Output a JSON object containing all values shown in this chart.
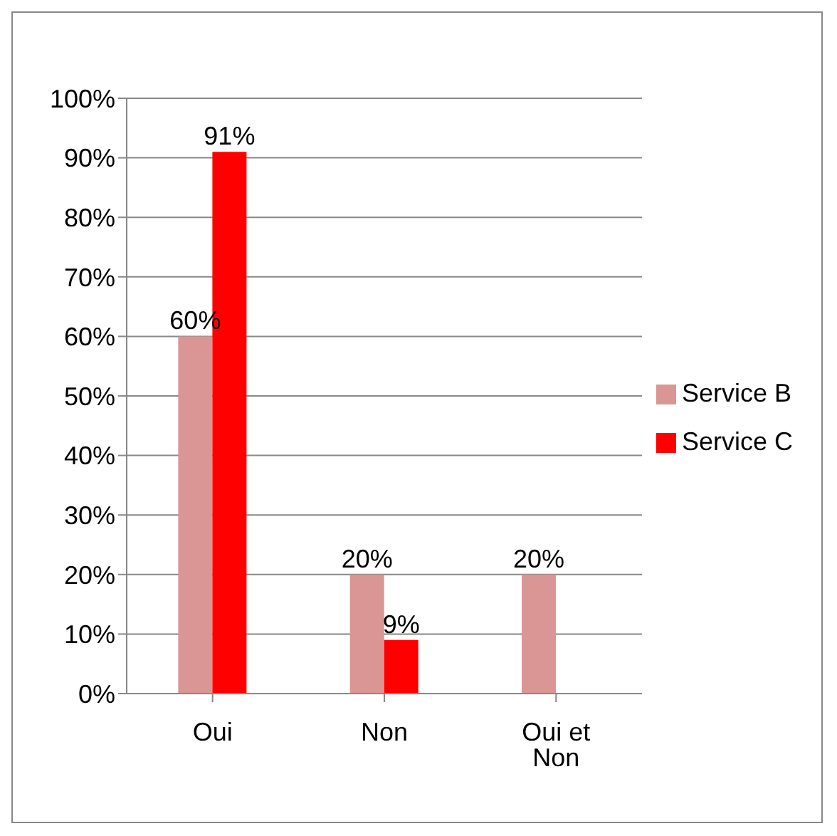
{
  "chart_data": {
    "type": "bar",
    "categories": [
      "Oui",
      "Non",
      "Oui et Non"
    ],
    "series": [
      {
        "name": "Service B",
        "color": "#d99694",
        "values": [
          60,
          20,
          20
        ],
        "value_labels": [
          "60%",
          "20%",
          "20%"
        ]
      },
      {
        "name": "Service C",
        "color": "#ff0000",
        "values": [
          91,
          9,
          null
        ],
        "value_labels": [
          "91%",
          "9%",
          null
        ]
      }
    ],
    "ylim": [
      0,
      100
    ],
    "yticks": [
      {
        "value": 0,
        "label": "0%"
      },
      {
        "value": 10,
        "label": "10%"
      },
      {
        "value": 20,
        "label": "20%"
      },
      {
        "value": 30,
        "label": "30%"
      },
      {
        "value": 40,
        "label": "40%"
      },
      {
        "value": 50,
        "label": "50%"
      },
      {
        "value": 60,
        "label": "60%"
      },
      {
        "value": 70,
        "label": "70%"
      },
      {
        "value": 80,
        "label": "80%"
      },
      {
        "value": 90,
        "label": "90%"
      },
      {
        "value": 100,
        "label": "100%"
      }
    ],
    "grid": "y",
    "legend": "right"
  }
}
